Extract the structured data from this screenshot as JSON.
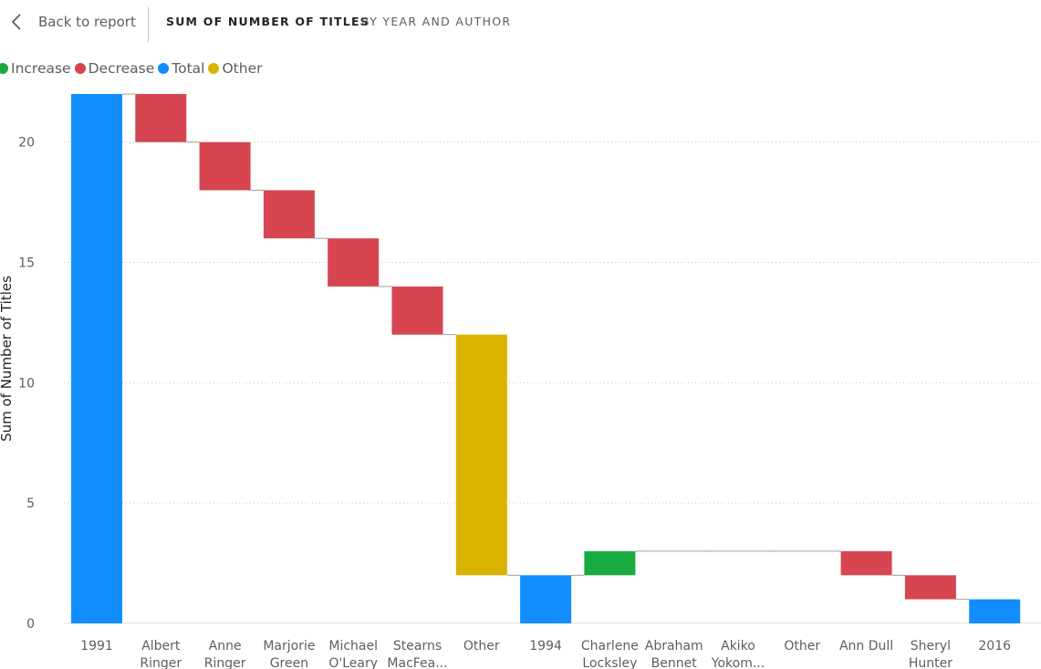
{
  "header": {
    "back_label": "Back to report",
    "title": "SUM OF NUMBER OF TITLES",
    "subtitle": "BY YEAR AND AUTHOR"
  },
  "legend": [
    {
      "label": "Increase",
      "color": "#1aab40"
    },
    {
      "label": "Decrease",
      "color": "#d64550"
    },
    {
      "label": "Total",
      "color": "#118dff"
    },
    {
      "label": "Other",
      "color": "#d9b300"
    }
  ],
  "chart_data": {
    "type": "bar",
    "subtype": "waterfall",
    "ylabel": "Sum of Number of Titles",
    "xlabel": "",
    "ylim": [
      0,
      22
    ],
    "yticks": [
      0,
      5,
      10,
      15,
      20
    ],
    "grid": true,
    "legend_position": "top-left",
    "categories": [
      [
        "1991"
      ],
      [
        "Albert",
        "Ringer"
      ],
      [
        "Anne",
        "Ringer"
      ],
      [
        "Marjorie",
        "Green"
      ],
      [
        "Michael",
        "O'Leary"
      ],
      [
        "Stearns",
        "MacFea..."
      ],
      [
        "Other"
      ],
      [
        "1994"
      ],
      [
        "Charlene",
        "Locksley"
      ],
      [
        "Abraham",
        "Bennet"
      ],
      [
        "Akiko",
        "Yokom..."
      ],
      [
        "Other"
      ],
      [
        "Ann Dull"
      ],
      [
        "Sheryl",
        "Hunter"
      ],
      [
        "2016"
      ]
    ],
    "bars": [
      {
        "kind": "Total",
        "start": 0,
        "end": 22
      },
      {
        "kind": "Decrease",
        "start": 22,
        "end": 20
      },
      {
        "kind": "Decrease",
        "start": 20,
        "end": 18
      },
      {
        "kind": "Decrease",
        "start": 18,
        "end": 16
      },
      {
        "kind": "Decrease",
        "start": 16,
        "end": 14
      },
      {
        "kind": "Decrease",
        "start": 14,
        "end": 12
      },
      {
        "kind": "Other",
        "start": 12,
        "end": 2
      },
      {
        "kind": "Total",
        "start": 0,
        "end": 2
      },
      {
        "kind": "Increase",
        "start": 2,
        "end": 3
      },
      {
        "kind": "Flat",
        "start": 3,
        "end": 3
      },
      {
        "kind": "Flat",
        "start": 3,
        "end": 3
      },
      {
        "kind": "Flat",
        "start": 3,
        "end": 3
      },
      {
        "kind": "Decrease",
        "start": 3,
        "end": 2
      },
      {
        "kind": "Decrease",
        "start": 2,
        "end": 1
      },
      {
        "kind": "Total",
        "start": 0,
        "end": 1
      }
    ],
    "colors": {
      "Increase": "#1aab40",
      "Decrease": "#d64550",
      "Total": "#118dff",
      "Other": "#d9b300",
      "Flat": "#c8c6c4"
    }
  }
}
